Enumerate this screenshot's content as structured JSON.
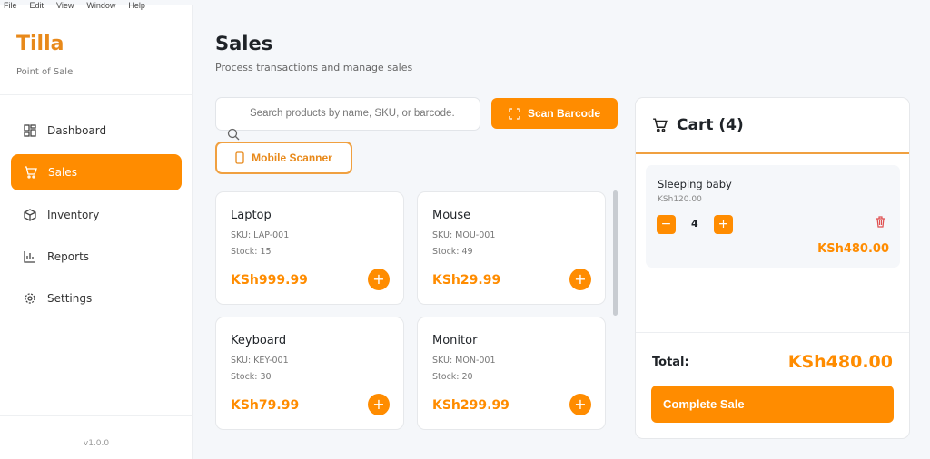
{
  "menu": [
    "File",
    "Edit",
    "View",
    "Window",
    "Help"
  ],
  "brand": {
    "name": "Tilla",
    "tagline": "Point of Sale",
    "version": "v1.0.0"
  },
  "nav": [
    {
      "label": "Dashboard",
      "icon": "dashboard-icon"
    },
    {
      "label": "Sales",
      "icon": "cart-icon",
      "active": true
    },
    {
      "label": "Inventory",
      "icon": "box-icon"
    },
    {
      "label": "Reports",
      "icon": "bar-chart-icon"
    },
    {
      "label": "Settings",
      "icon": "gear-icon"
    }
  ],
  "page": {
    "title": "Sales",
    "subtitle": "Process transactions and manage sales"
  },
  "search": {
    "placeholder": "Search products by name, SKU, or barcode."
  },
  "buttons": {
    "scan": "Scan Barcode",
    "mobile": "Mobile Scanner",
    "complete": "Complete Sale"
  },
  "products": [
    {
      "name": "Laptop",
      "sku": "SKU: LAP-001",
      "stock": "Stock: 15",
      "price": "KSh999.99"
    },
    {
      "name": "Mouse",
      "sku": "SKU: MOU-001",
      "stock": "Stock: 49",
      "price": "KSh29.99"
    },
    {
      "name": "Keyboard",
      "sku": "SKU: KEY-001",
      "stock": "Stock: 30",
      "price": "KSh79.99"
    },
    {
      "name": "Monitor",
      "sku": "SKU: MON-001",
      "stock": "Stock: 20",
      "price": "KSh299.99"
    }
  ],
  "cart": {
    "title": "Cart (4)",
    "items": [
      {
        "name": "Sleeping baby",
        "unit_price": "KSh120.00",
        "qty": "4",
        "total": "KSh480.00"
      }
    ],
    "total_label": "Total:",
    "total": "KSh480.00"
  },
  "colors": {
    "accent": "#ff8c00",
    "danger": "#e05050"
  }
}
